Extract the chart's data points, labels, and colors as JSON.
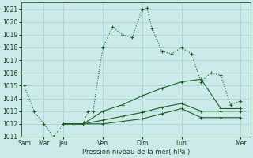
{
  "title": "Pression niveau de la mer( hPa )",
  "bg_color": "#cceaea",
  "grid_color": "#aad4d4",
  "line_color": "#1a6020",
  "ylim": [
    1011,
    1021.5
  ],
  "yticks": [
    1011,
    1012,
    1013,
    1014,
    1015,
    1016,
    1017,
    1018,
    1019,
    1020,
    1021
  ],
  "day_tick_positions": [
    0,
    2,
    4,
    8,
    12,
    16,
    22
  ],
  "day_tick_labels": [
    "Sam",
    "Mar",
    "Jeu",
    "Ven",
    "Dim",
    "Lun",
    "Mer"
  ],
  "xlim": [
    -0.3,
    23.0
  ],
  "line1_x": [
    0,
    1,
    2,
    3,
    4,
    5,
    6,
    6.5,
    7,
    8,
    9,
    10,
    11,
    12,
    12.5,
    13,
    14,
    15,
    16,
    17,
    18,
    19,
    20,
    21,
    22
  ],
  "line1_y": [
    1015,
    1013,
    1012,
    1011,
    1012,
    1012,
    1012,
    1013,
    1013,
    1018,
    1019.6,
    1019,
    1018.8,
    1021,
    1021.1,
    1019.5,
    1017.7,
    1017.5,
    1018,
    1017.5,
    1015.3,
    1016,
    1015.8,
    1013.5,
    1013.8
  ],
  "line2_x": [
    4,
    6,
    8,
    10,
    12,
    14,
    16,
    18,
    20,
    22
  ],
  "line2_y": [
    1012,
    1012,
    1013.0,
    1013.5,
    1014.2,
    1014.8,
    1015.3,
    1015.5,
    1013.2,
    1013.2
  ],
  "line3_x": [
    4,
    6,
    8,
    10,
    12,
    14,
    16,
    18,
    20,
    22
  ],
  "line3_y": [
    1012,
    1012,
    1012.3,
    1012.6,
    1012.9,
    1013.3,
    1013.6,
    1013.0,
    1013.0,
    1013.0
  ],
  "line4_x": [
    4,
    6,
    8,
    10,
    12,
    14,
    16,
    18,
    20,
    22
  ],
  "line4_y": [
    1012,
    1012,
    1012.0,
    1012.2,
    1012.4,
    1012.8,
    1013.2,
    1012.5,
    1012.5,
    1012.5
  ]
}
